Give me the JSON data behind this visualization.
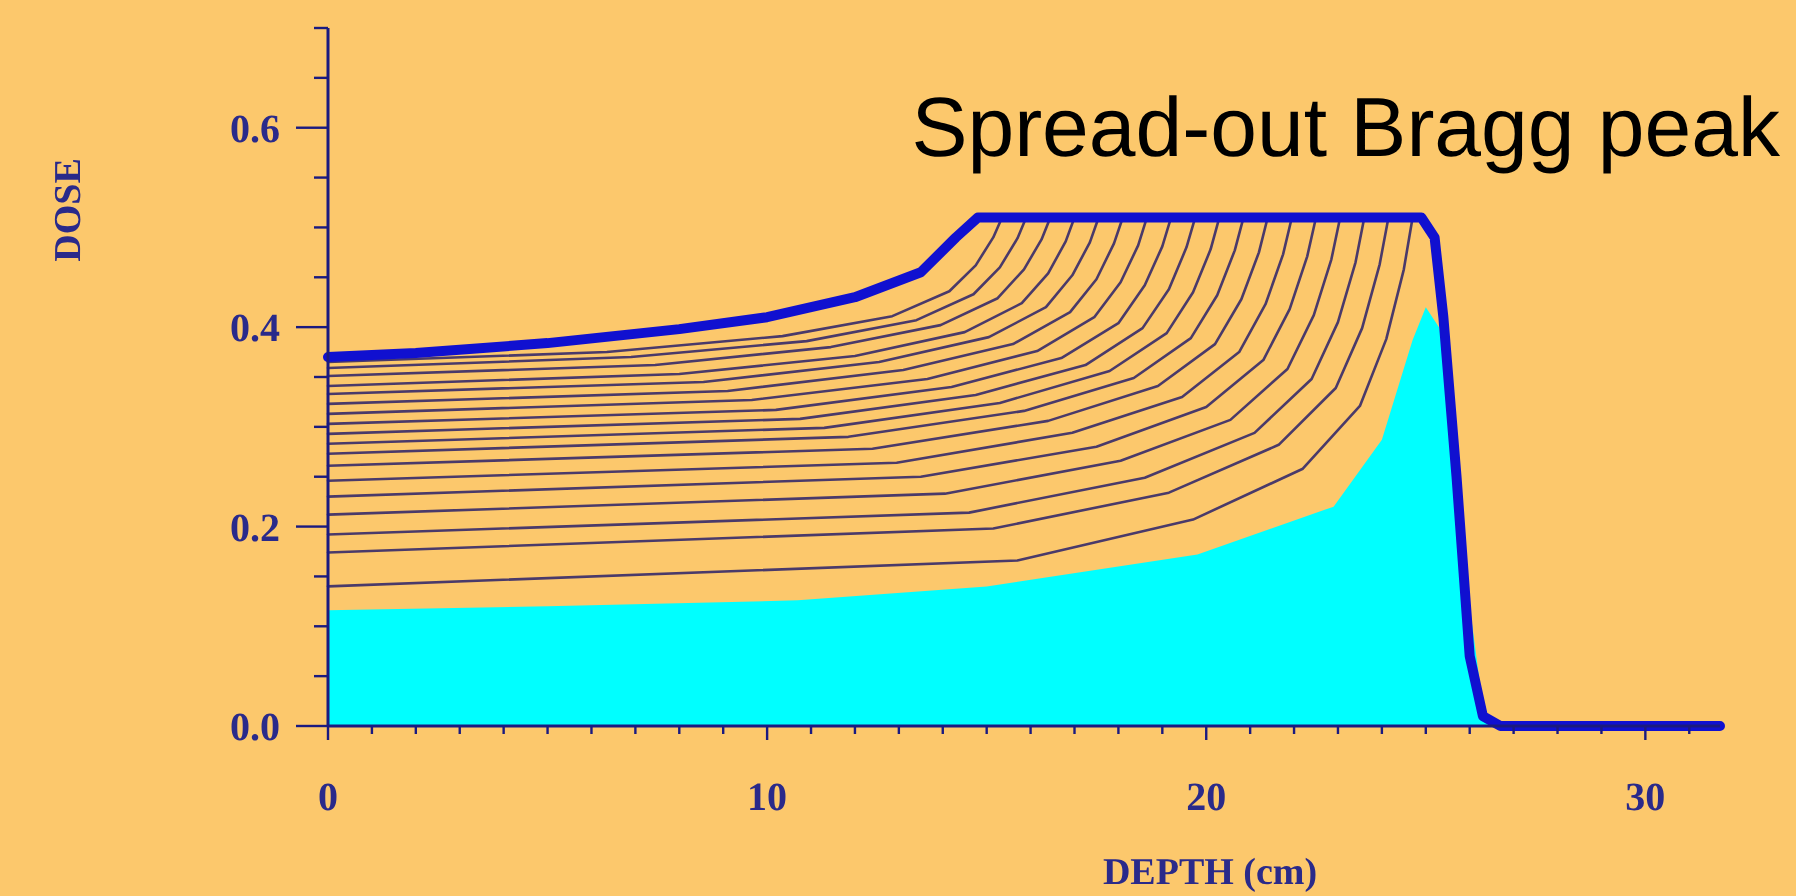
{
  "chart_data": {
    "type": "line",
    "title": "Spread-out Bragg peak",
    "xlabel": "DEPTH (cm)",
    "ylabel": "DOSE",
    "xlim": [
      0,
      31.7
    ],
    "ylim": [
      0,
      0.7
    ],
    "xticks": [
      0,
      {
        "value": 1,
        "label": null
      },
      {
        "value": 2,
        "label": null
      },
      {
        "value": 3,
        "label": null
      },
      {
        "value": 4,
        "label": null
      },
      {
        "value": 5,
        "label": null
      },
      {
        "value": 6,
        "label": null
      },
      {
        "value": 7,
        "label": null
      },
      {
        "value": 8,
        "label": null
      },
      {
        "value": 9,
        "label": null
      },
      10,
      {
        "value": 11,
        "label": null
      },
      {
        "value": 12,
        "label": null
      },
      {
        "value": 13,
        "label": null
      },
      {
        "value": 14,
        "label": null
      },
      {
        "value": 15,
        "label": null
      },
      {
        "value": 16,
        "label": null
      },
      {
        "value": 17,
        "label": null
      },
      {
        "value": 18,
        "label": null
      },
      {
        "value": 19,
        "label": null
      },
      20,
      {
        "value": 21,
        "label": null
      },
      {
        "value": 22,
        "label": null
      },
      {
        "value": 23,
        "label": null
      },
      {
        "value": 24,
        "label": null
      },
      {
        "value": 25,
        "label": null
      },
      {
        "value": 26,
        "label": null
      },
      {
        "value": 27,
        "label": null
      },
      {
        "value": 28,
        "label": null
      },
      {
        "value": 29,
        "label": null
      },
      30,
      {
        "value": 31,
        "label": null
      }
    ],
    "yticks": [
      {
        "value": 0,
        "label": "0.0"
      },
      {
        "value": 0.05,
        "label": null
      },
      {
        "value": 0.1,
        "label": null
      },
      {
        "value": 0.15,
        "label": null
      },
      {
        "value": 0.2,
        "label": "0.2"
      },
      {
        "value": 0.25,
        "label": null
      },
      {
        "value": 0.3,
        "label": null
      },
      {
        "value": 0.35,
        "label": null
      },
      {
        "value": 0.4,
        "label": "0.4"
      },
      {
        "value": 0.45,
        "label": null
      },
      {
        "value": 0.5,
        "label": null
      },
      {
        "value": 0.55,
        "label": null
      },
      {
        "value": 0.6,
        "label": "0.6"
      },
      {
        "value": 0.65,
        "label": null
      },
      {
        "value": 0.7,
        "label": null
      }
    ],
    "grid": false,
    "marker": "none",
    "line_style": "solid",
    "series": [
      {
        "type": "area",
        "color": "#00ffff",
        "x": [
          0,
          5,
          10.7,
          15,
          19.8,
          22.9,
          24,
          24.7,
          25,
          25.3,
          25.6,
          26,
          26.3,
          26.5
        ],
        "values": [
          0.116,
          0.12,
          0.126,
          0.14,
          0.172,
          0.22,
          0.287,
          0.387,
          0.42,
          0.4,
          0.35,
          0.12,
          0.02,
          0
        ]
      },
      {
        "color": "#4a3a6a",
        "x": [
          0,
          15.7,
          19.7,
          22.2,
          23.5,
          24.1,
          24.5,
          24.7
        ],
        "values": [
          0.14,
          0.166,
          0.207,
          0.258,
          0.321,
          0.388,
          0.458,
          0.51
        ]
      },
      {
        "color": "#4a3a6a",
        "x": [
          0,
          15.15,
          19.15,
          21.65,
          22.95,
          23.55,
          23.95,
          24.15
        ],
        "values": [
          0.174,
          0.198,
          0.234,
          0.282,
          0.339,
          0.399,
          0.463,
          0.51
        ]
      },
      {
        "color": "#4a3a6a",
        "x": [
          0,
          14.6,
          18.6,
          21.1,
          22.4,
          23,
          23.4,
          23.6
        ],
        "values": [
          0.192,
          0.214,
          0.249,
          0.294,
          0.348,
          0.405,
          0.465,
          0.51
        ]
      },
      {
        "color": "#4a3a6a",
        "x": [
          0,
          14.05,
          18.05,
          20.55,
          21.85,
          22.45,
          22.85,
          23.05
        ],
        "values": [
          0.212,
          0.233,
          0.266,
          0.307,
          0.358,
          0.412,
          0.468,
          0.51
        ]
      },
      {
        "color": "#4a3a6a",
        "x": [
          0,
          13.5,
          17.5,
          20,
          21.3,
          21.9,
          22.3,
          22.5
        ],
        "values": [
          0.23,
          0.25,
          0.28,
          0.32,
          0.367,
          0.418,
          0.471,
          0.51
        ]
      },
      {
        "color": "#4a3a6a",
        "x": [
          0,
          12.95,
          16.95,
          19.45,
          20.75,
          21.35,
          21.75,
          21.95
        ],
        "values": [
          0.246,
          0.264,
          0.294,
          0.33,
          0.375,
          0.423,
          0.473,
          0.51
        ]
      },
      {
        "color": "#4a3a6a",
        "x": [
          0,
          12.4,
          16.4,
          18.9,
          20.2,
          20.8,
          21.2,
          21.4
        ],
        "values": [
          0.261,
          0.278,
          0.306,
          0.341,
          0.383,
          0.428,
          0.475,
          0.51
        ]
      },
      {
        "color": "#4a3a6a",
        "x": [
          0,
          11.85,
          15.85,
          18.35,
          19.65,
          20.25,
          20.65,
          20.85
        ],
        "values": [
          0.273,
          0.29,
          0.316,
          0.349,
          0.389,
          0.432,
          0.477,
          0.51
        ]
      },
      {
        "color": "#4a3a6a",
        "x": [
          0,
          11.3,
          15.3,
          17.8,
          19.1,
          19.7,
          20.1,
          20.3
        ],
        "values": [
          0.283,
          0.299,
          0.324,
          0.356,
          0.394,
          0.435,
          0.478,
          0.51
        ]
      },
      {
        "color": "#4a3a6a",
        "x": [
          0,
          10.75,
          14.75,
          17.25,
          18.55,
          19.15,
          19.55,
          19.75
        ],
        "values": [
          0.293,
          0.308,
          0.332,
          0.362,
          0.399,
          0.438,
          0.48,
          0.51
        ]
      },
      {
        "color": "#4a3a6a",
        "x": [
          0,
          10.2,
          14.2,
          16.7,
          18,
          18.6,
          19,
          19.2
        ],
        "values": [
          0.303,
          0.317,
          0.34,
          0.369,
          0.404,
          0.442,
          0.481,
          0.51
        ]
      },
      {
        "color": "#4a3a6a",
        "x": [
          0,
          9.65,
          13.65,
          16.15,
          17.45,
          18.05,
          18.45,
          18.65
        ],
        "values": [
          0.313,
          0.327,
          0.348,
          0.376,
          0.41,
          0.445,
          0.482,
          0.51
        ]
      },
      {
        "color": "#4a3a6a",
        "x": [
          0,
          9.1,
          13.1,
          15.6,
          16.9,
          17.5,
          17.9,
          18.1
        ],
        "values": [
          0.323,
          0.336,
          0.357,
          0.383,
          0.415,
          0.448,
          0.484,
          0.51
        ]
      },
      {
        "color": "#4a3a6a",
        "x": [
          0,
          8.55,
          12.55,
          15.05,
          16.35,
          16.95,
          17.35,
          17.55
        ],
        "values": [
          0.333,
          0.345,
          0.365,
          0.39,
          0.42,
          0.452,
          0.485,
          0.51
        ]
      },
      {
        "color": "#4a3a6a",
        "x": [
          0,
          8,
          12,
          14.5,
          15.8,
          16.4,
          16.8,
          17
        ],
        "values": [
          0.341,
          0.353,
          0.371,
          0.395,
          0.424,
          0.454,
          0.486,
          0.51
        ]
      },
      {
        "color": "#4a3a6a",
        "x": [
          0,
          7.45,
          11.45,
          13.95,
          15.25,
          15.85,
          16.25,
          16.45
        ],
        "values": [
          0.351,
          0.362,
          0.38,
          0.402,
          0.429,
          0.458,
          0.488,
          0.51
        ]
      },
      {
        "color": "#4a3a6a",
        "x": [
          0,
          6.9,
          10.9,
          13.4,
          14.7,
          15.3,
          15.7,
          15.9
        ],
        "values": [
          0.359,
          0.37,
          0.386,
          0.407,
          0.433,
          0.46,
          0.489,
          0.51
        ]
      },
      {
        "color": "#4a3a6a",
        "x": [
          0,
          6.35,
          10.35,
          12.85,
          14.15,
          14.75,
          15.15,
          15.35
        ],
        "values": [
          0.365,
          0.375,
          0.391,
          0.411,
          0.436,
          0.462,
          0.49,
          0.51
        ]
      },
      {
        "color": "#1010d0",
        "x": [
          0,
          2,
          5,
          8,
          10,
          12,
          13.5,
          14.3,
          14.8,
          24.9,
          25.2,
          25.4,
          25.7,
          26,
          26.3,
          26.7,
          31.7
        ],
        "values": [
          0.37,
          0.374,
          0.384,
          0.398,
          0.41,
          0.43,
          0.455,
          0.49,
          0.51,
          0.51,
          0.49,
          0.41,
          0.25,
          0.07,
          0.01,
          0,
          0
        ]
      }
    ]
  }
}
